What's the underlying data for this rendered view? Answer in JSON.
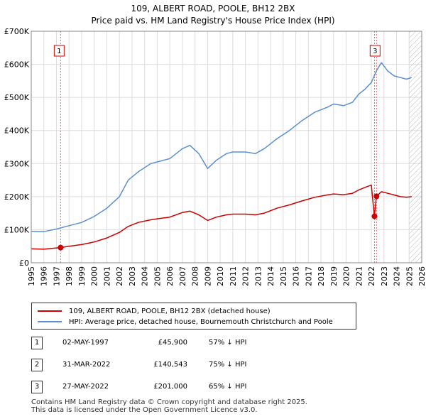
{
  "chart_data": {
    "type": "line",
    "title": "109, ALBERT ROAD, POOLE, BH12 2BX",
    "subtitle": "Price paid vs. HM Land Registry's House Price Index (HPI)",
    "xlim": [
      1995,
      2026
    ],
    "ylim": [
      0,
      700000
    ],
    "x_ticks": [
      "1995",
      "1996",
      "1997",
      "1998",
      "1999",
      "2000",
      "2001",
      "2002",
      "2003",
      "2004",
      "2005",
      "2006",
      "2007",
      "2008",
      "2009",
      "2010",
      "2011",
      "2012",
      "2013",
      "2014",
      "2015",
      "2016",
      "2017",
      "2018",
      "2019",
      "2020",
      "2021",
      "2022",
      "2023",
      "2024",
      "2025",
      "2026"
    ],
    "y_ticks": [
      {
        "value": 0,
        "label": "£0"
      },
      {
        "value": 100000,
        "label": "£100K"
      },
      {
        "value": 200000,
        "label": "£200K"
      },
      {
        "value": 300000,
        "label": "£300K"
      },
      {
        "value": 400000,
        "label": "£400K"
      },
      {
        "value": 500000,
        "label": "£500K"
      },
      {
        "value": 600000,
        "label": "£600K"
      },
      {
        "value": 700000,
        "label": "£700K"
      }
    ],
    "grid": true,
    "series": [
      {
        "name": "HPI: Average price, detached house, Bournemouth Christchurch and Poole",
        "color": "#5b8fd0",
        "points": [
          [
            1995.0,
            95000
          ],
          [
            1996.0,
            94000
          ],
          [
            1997.0,
            102000
          ],
          [
            1998.0,
            112000
          ],
          [
            1999.0,
            122000
          ],
          [
            2000.0,
            140000
          ],
          [
            2001.0,
            165000
          ],
          [
            2002.0,
            200000
          ],
          [
            2002.7,
            250000
          ],
          [
            2003.5,
            275000
          ],
          [
            2004.5,
            300000
          ],
          [
            2005.0,
            305000
          ],
          [
            2006.0,
            315000
          ],
          [
            2007.0,
            345000
          ],
          [
            2007.6,
            355000
          ],
          [
            2008.3,
            330000
          ],
          [
            2009.0,
            285000
          ],
          [
            2009.7,
            310000
          ],
          [
            2010.5,
            330000
          ],
          [
            2011.0,
            335000
          ],
          [
            2012.0,
            335000
          ],
          [
            2012.8,
            330000
          ],
          [
            2013.5,
            345000
          ],
          [
            2014.5,
            375000
          ],
          [
            2015.5,
            400000
          ],
          [
            2016.5,
            430000
          ],
          [
            2017.5,
            455000
          ],
          [
            2018.5,
            470000
          ],
          [
            2019.0,
            480000
          ],
          [
            2019.8,
            475000
          ],
          [
            2020.5,
            485000
          ],
          [
            2021.0,
            510000
          ],
          [
            2021.5,
            525000
          ],
          [
            2022.0,
            545000
          ],
          [
            2022.4,
            580000
          ],
          [
            2022.8,
            605000
          ],
          [
            2023.3,
            580000
          ],
          [
            2023.8,
            565000
          ],
          [
            2024.3,
            560000
          ],
          [
            2024.8,
            555000
          ],
          [
            2025.2,
            560000
          ]
        ]
      },
      {
        "name": "109, ALBERT ROAD, POOLE, BH12 2BX (detached house)",
        "color": "#cc0000",
        "points": [
          [
            1995.0,
            42000
          ],
          [
            1996.0,
            41000
          ],
          [
            1997.33,
            45900
          ],
          [
            1998.0,
            50000
          ],
          [
            1999.0,
            55000
          ],
          [
            2000.0,
            63000
          ],
          [
            2001.0,
            75000
          ],
          [
            2002.0,
            92000
          ],
          [
            2002.7,
            110000
          ],
          [
            2003.5,
            122000
          ],
          [
            2004.5,
            130000
          ],
          [
            2005.0,
            133000
          ],
          [
            2006.0,
            138000
          ],
          [
            2007.0,
            152000
          ],
          [
            2007.6,
            156000
          ],
          [
            2008.3,
            145000
          ],
          [
            2009.0,
            128000
          ],
          [
            2009.7,
            138000
          ],
          [
            2010.5,
            145000
          ],
          [
            2011.0,
            147000
          ],
          [
            2012.0,
            147000
          ],
          [
            2012.8,
            145000
          ],
          [
            2013.5,
            150000
          ],
          [
            2014.5,
            165000
          ],
          [
            2015.5,
            175000
          ],
          [
            2016.5,
            187000
          ],
          [
            2017.5,
            198000
          ],
          [
            2018.5,
            205000
          ],
          [
            2019.0,
            208000
          ],
          [
            2019.8,
            206000
          ],
          [
            2020.5,
            210000
          ],
          [
            2021.0,
            220000
          ],
          [
            2021.5,
            228000
          ],
          [
            2022.0,
            235000
          ],
          [
            2022.24,
            140543
          ],
          [
            2022.4,
            201000
          ],
          [
            2022.8,
            215000
          ],
          [
            2023.3,
            210000
          ],
          [
            2023.8,
            205000
          ],
          [
            2024.3,
            200000
          ],
          [
            2024.8,
            198000
          ],
          [
            2025.2,
            200000
          ]
        ]
      }
    ],
    "transactions": [
      {
        "num": "1",
        "x": 1997.33,
        "value": 45900,
        "date": "02-MAY-1997",
        "price": "£45,900",
        "hpi": "57% ↓ HPI"
      },
      {
        "num": "2",
        "x": 2022.25,
        "value": 140543,
        "date": "31-MAR-2022",
        "price": "£140,543",
        "hpi": "75% ↓ HPI"
      },
      {
        "num": "3",
        "x": 2022.41,
        "value": 201000,
        "date": "27-MAY-2022",
        "price": "£201,000",
        "hpi": "65% ↓ HPI"
      }
    ],
    "marker_labels": [
      {
        "num": "1",
        "x": 1997.33
      },
      {
        "num": "3",
        "x": 2022.41
      }
    ],
    "hatched_region_start": 2025.0
  },
  "legend": {
    "property_label": "109, ALBERT ROAD, POOLE, BH12 2BX (detached house)",
    "hpi_label": "HPI: Average price, detached house, Bournemouth Christchurch and Poole",
    "property_color": "#cc0000",
    "hpi_color": "#5b8fd0"
  },
  "footer": {
    "line1": "Contains HM Land Registry data © Crown copyright and database right 2025.",
    "line2": "This data is licensed under the Open Government Licence v3.0."
  }
}
